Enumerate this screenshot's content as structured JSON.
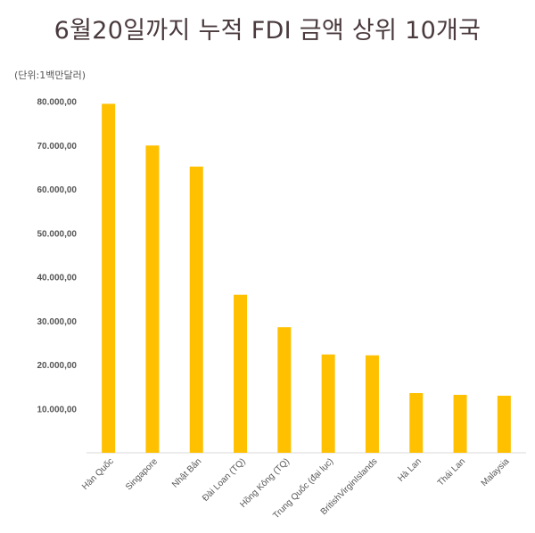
{
  "chart_data": {
    "type": "bar",
    "title": "6월20일까지 누적 FDI 금액 상위 10개국",
    "unit_label": "(단위:1백만달러)",
    "categories": [
      "Hàn Quốc",
      "Singapore",
      "Nhật Bản",
      "Đài Loan (TQ)",
      "Hồng Kông (TQ)",
      "Trung Quốc (đại lục)",
      "BritishVirginIslands",
      "Hà Lan",
      "Thái Lan",
      "Malaysia"
    ],
    "values": [
      79500,
      70000,
      65200,
      36000,
      28600,
      22400,
      22200,
      13600,
      13200,
      13000
    ],
    "ylim": [
      0,
      80000
    ],
    "yticks": [
      10000,
      20000,
      30000,
      40000,
      50000,
      60000,
      70000,
      80000
    ],
    "ytick_labels": [
      "10.000,00",
      "20.000,00",
      "30.000,00",
      "40.000,00",
      "50.000,00",
      "60.000,00",
      "70.000,00",
      "80.000,00"
    ],
    "bar_color": "#ffc000",
    "axis_color": "#d9d9d9",
    "grid": false,
    "legend": "none"
  }
}
